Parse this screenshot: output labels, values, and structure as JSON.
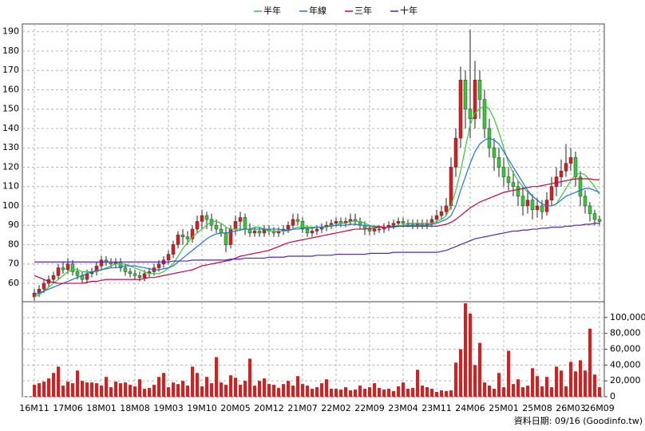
{
  "chart_data": {
    "type": "candlestick",
    "legend": "top",
    "grid": true,
    "up_color": "#e41a1a",
    "down_color": "#33cc33",
    "wick_color": "#222222",
    "source": "資料日期: 09/16 (Goodinfo.tw)",
    "categories": [
      "16M11",
      null,
      null,
      null,
      null,
      null,
      null,
      "17M06",
      null,
      null,
      null,
      null,
      null,
      null,
      "18M01",
      null,
      null,
      null,
      null,
      null,
      null,
      "18M08",
      null,
      null,
      null,
      null,
      null,
      null,
      "19M03",
      null,
      null,
      null,
      null,
      null,
      null,
      "19M10",
      null,
      null,
      null,
      null,
      null,
      null,
      "20M05",
      null,
      null,
      null,
      null,
      null,
      null,
      "20M12",
      null,
      null,
      null,
      null,
      null,
      null,
      "21M07",
      null,
      null,
      null,
      null,
      null,
      null,
      "22M02",
      null,
      null,
      null,
      null,
      null,
      null,
      "22M09",
      null,
      null,
      null,
      null,
      null,
      null,
      "23M04",
      null,
      null,
      null,
      null,
      null,
      null,
      "23M11",
      null,
      null,
      null,
      null,
      null,
      null,
      "24M06",
      null,
      null,
      null,
      null,
      null,
      null,
      "25M01",
      null,
      null,
      null,
      null,
      null,
      null,
      "25M08",
      null,
      null,
      null,
      null,
      null,
      null,
      "26M03",
      null,
      null,
      null,
      null,
      null,
      "26M09"
    ],
    "open": [
      53,
      55,
      57,
      60,
      62,
      64,
      68,
      67,
      70,
      66,
      64,
      62,
      65,
      66,
      69,
      72,
      71,
      70,
      71,
      68,
      66,
      65,
      64,
      63,
      65,
      66,
      68,
      70,
      72,
      75,
      80,
      85,
      84,
      83,
      88,
      92,
      95,
      93,
      90,
      88,
      86,
      80,
      88,
      92,
      94,
      88,
      86,
      87,
      86,
      88,
      87,
      86,
      87,
      88,
      90,
      93,
      92,
      88,
      86,
      87,
      88,
      89,
      90,
      91,
      92,
      91,
      92,
      93,
      92,
      90,
      88,
      87,
      88,
      88,
      89,
      90,
      91,
      92,
      91,
      91,
      90,
      91,
      90,
      91,
      93,
      95,
      97,
      100,
      120,
      135,
      165,
      150,
      145,
      165,
      155,
      140,
      130,
      125,
      120,
      115,
      112,
      110,
      105,
      100,
      103,
      98,
      100,
      97,
      103,
      110,
      115,
      118,
      122,
      125,
      115,
      105,
      100,
      96,
      93
    ],
    "high": [
      57,
      59,
      62,
      64,
      66,
      70,
      71,
      73,
      72,
      68,
      66,
      67,
      68,
      71,
      74,
      74,
      73,
      73,
      73,
      70,
      68,
      67,
      66,
      67,
      68,
      70,
      72,
      74,
      77,
      82,
      87,
      88,
      87,
      90,
      95,
      98,
      97,
      96,
      93,
      91,
      89,
      90,
      95,
      97,
      96,
      91,
      89,
      89,
      90,
      90,
      89,
      89,
      90,
      92,
      96,
      96,
      94,
      90,
      89,
      90,
      91,
      92,
      93,
      94,
      94,
      94,
      96,
      96,
      94,
      92,
      90,
      90,
      90,
      91,
      92,
      93,
      94,
      94,
      93,
      93,
      93,
      93,
      93,
      95,
      98,
      100,
      104,
      125,
      140,
      172,
      170,
      191,
      175,
      170,
      160,
      145,
      135,
      130,
      125,
      120,
      118,
      113,
      110,
      108,
      106,
      104,
      103,
      107,
      115,
      120,
      124,
      132,
      130,
      128,
      118,
      108,
      102,
      98,
      95
    ],
    "low": [
      51,
      53,
      55,
      58,
      60,
      62,
      65,
      65,
      64,
      62,
      60,
      60,
      63,
      64,
      67,
      69,
      68,
      68,
      66,
      64,
      63,
      62,
      61,
      61,
      63,
      64,
      66,
      68,
      70,
      73,
      78,
      80,
      80,
      81,
      86,
      88,
      88,
      87,
      86,
      84,
      76,
      78,
      85,
      88,
      85,
      84,
      84,
      84,
      84,
      85,
      84,
      84,
      85,
      86,
      88,
      90,
      86,
      84,
      84,
      85,
      86,
      87,
      88,
      89,
      89,
      89,
      90,
      90,
      88,
      85,
      85,
      85,
      86,
      86,
      87,
      88,
      89,
      89,
      89,
      88,
      88,
      88,
      88,
      89,
      91,
      93,
      95,
      98,
      115,
      130,
      140,
      135,
      140,
      145,
      135,
      125,
      118,
      115,
      110,
      108,
      105,
      100,
      95,
      96,
      93,
      94,
      93,
      95,
      100,
      105,
      110,
      115,
      118,
      110,
      100,
      96,
      92,
      90,
      90
    ],
    "close": [
      55,
      57,
      60,
      62,
      64,
      68,
      67,
      70,
      66,
      64,
      62,
      65,
      66,
      69,
      72,
      71,
      70,
      71,
      68,
      66,
      65,
      64,
      63,
      65,
      66,
      68,
      70,
      72,
      75,
      80,
      85,
      84,
      83,
      88,
      92,
      95,
      93,
      90,
      88,
      86,
      80,
      88,
      92,
      94,
      88,
      86,
      87,
      86,
      88,
      87,
      86,
      87,
      88,
      90,
      93,
      92,
      88,
      86,
      87,
      88,
      89,
      90,
      91,
      92,
      91,
      92,
      93,
      92,
      90,
      88,
      87,
      88,
      88,
      89,
      90,
      91,
      92,
      91,
      91,
      90,
      91,
      90,
      91,
      93,
      95,
      97,
      100,
      120,
      135,
      165,
      150,
      145,
      165,
      155,
      140,
      130,
      125,
      120,
      115,
      112,
      110,
      105,
      100,
      103,
      98,
      100,
      97,
      103,
      110,
      115,
      118,
      122,
      125,
      115,
      105,
      100,
      96,
      93,
      92
    ],
    "series": [
      {
        "name": "半年",
        "color": "#33cc33",
        "values": [
          53,
          54,
          56,
          58,
          60,
          62,
          64,
          66,
          67,
          67,
          66,
          66,
          66,
          66,
          67,
          68,
          69,
          70,
          70,
          70,
          69,
          68,
          67,
          66,
          65,
          65,
          65,
          66,
          68,
          70,
          74,
          78,
          81,
          84,
          86,
          88,
          90,
          92,
          92,
          91,
          89,
          88,
          88,
          88,
          88,
          88,
          89,
          89,
          88,
          87,
          87,
          87,
          87,
          87,
          88,
          89,
          89,
          89,
          89,
          89,
          89,
          89,
          90,
          90,
          91,
          91,
          92,
          92,
          92,
          91,
          90,
          89,
          89,
          89,
          89,
          89,
          90,
          90,
          91,
          91,
          91,
          91,
          91,
          91,
          92,
          93,
          95,
          100,
          108,
          118,
          130,
          142,
          148,
          150,
          152,
          150,
          145,
          138,
          130,
          122,
          117,
          113,
          110,
          107,
          105,
          103,
          101,
          100,
          100,
          101,
          105,
          109,
          113,
          116,
          117,
          116,
          113,
          110,
          106
        ]
      },
      {
        "name": "年線",
        "color": "#1f6fe0",
        "values": [
          54,
          55,
          56,
          57,
          58,
          59,
          60,
          61,
          62,
          63,
          64,
          65,
          66,
          66.5,
          67,
          67.5,
          68,
          68,
          68.5,
          69,
          69,
          69,
          68.5,
          68,
          67.5,
          67,
          67,
          67.5,
          68,
          69,
          71,
          73,
          75,
          77,
          79,
          81,
          83,
          84.5,
          85.5,
          86,
          86,
          86.5,
          87,
          87.5,
          88,
          88,
          88,
          88,
          88,
          88,
          88,
          88,
          87.5,
          87.5,
          88,
          88,
          88.5,
          88.5,
          88.5,
          89,
          89,
          89.5,
          89.5,
          90,
          90,
          90,
          90.5,
          90.5,
          90,
          90,
          89.5,
          89.5,
          89.5,
          89,
          89,
          89,
          89.5,
          89.5,
          90,
          90,
          90,
          90,
          90,
          90.5,
          91,
          92,
          93,
          95,
          100,
          108,
          115,
          122,
          128,
          132,
          134,
          135,
          134,
          132,
          128,
          124,
          120,
          116,
          112,
          108,
          105,
          103,
          101,
          100,
          100,
          101,
          103,
          105,
          106,
          107,
          108,
          109,
          109,
          108,
          107
        ]
      },
      {
        "name": "三年",
        "color": "#cc0044",
        "values": [
          64,
          63,
          62,
          61,
          60.5,
          60,
          60,
          60,
          60,
          60,
          60,
          60.5,
          61,
          61,
          61.5,
          62,
          62,
          62,
          62,
          62,
          62,
          62,
          62,
          62.5,
          63,
          63,
          63.5,
          64,
          64.5,
          65,
          65.5,
          66,
          66.5,
          67,
          68,
          69,
          69.5,
          70,
          70.5,
          71,
          71.5,
          72,
          73,
          74,
          74.5,
          75,
          75.5,
          76,
          76.5,
          77,
          78,
          79,
          80,
          81,
          81.5,
          82,
          82.5,
          83,
          83.5,
          84,
          84.5,
          85,
          85.5,
          86,
          86.5,
          87,
          87.5,
          88,
          88,
          88,
          88.5,
          88.5,
          89,
          89,
          89,
          89.5,
          89.5,
          89.5,
          89.5,
          89.5,
          89.5,
          89.5,
          89.5,
          89.5,
          89.5,
          90,
          90.5,
          91.5,
          93,
          95,
          97,
          99,
          100.5,
          102,
          103,
          104,
          105,
          106,
          107,
          107.5,
          108,
          108.5,
          109,
          109.5,
          110,
          110,
          110.5,
          111,
          111.5,
          112,
          112.5,
          113,
          113.5,
          114,
          114,
          114,
          114,
          113.5,
          113.5
        ]
      },
      {
        "name": "十年",
        "color": "#5522bb",
        "values": [
          71,
          71,
          71,
          71,
          71,
          71,
          71,
          71,
          71,
          71,
          71,
          71,
          71,
          71,
          71,
          71,
          71,
          71,
          71,
          71,
          71,
          71,
          71,
          71,
          71,
          71,
          71,
          71,
          71,
          71.5,
          71.5,
          71.5,
          71.5,
          72,
          72,
          72,
          72,
          72,
          72,
          72,
          72,
          72.5,
          72.5,
          72.5,
          73,
          73,
          73,
          73,
          73,
          73.5,
          73.5,
          73.5,
          73.5,
          74,
          74,
          74,
          74,
          74,
          74,
          74.5,
          74.5,
          74.5,
          74.5,
          75,
          75,
          75,
          75,
          75,
          75,
          75,
          75.5,
          75.5,
          75.5,
          75.5,
          75.5,
          76,
          76,
          76,
          76,
          76,
          76,
          76,
          76,
          76,
          76,
          76.5,
          77,
          78,
          79,
          80,
          81,
          82,
          83,
          83.5,
          84,
          84.5,
          85,
          85.5,
          86,
          86.5,
          87,
          87,
          87.5,
          87.5,
          88,
          88,
          88.5,
          88.5,
          89,
          89,
          89,
          89.5,
          89.5,
          90,
          90,
          90.5,
          90.5,
          91,
          91
        ]
      }
    ],
    "ylim": [
      50.5,
      194
    ],
    "yticks": [
      60,
      70,
      80,
      90,
      100,
      110,
      120,
      130,
      140,
      150,
      160,
      170,
      180,
      190
    ],
    "volume": {
      "type": "bar",
      "color": "#e41a1a",
      "values": [
        15000,
        17000,
        19000,
        23000,
        30000,
        38000,
        14000,
        19000,
        17000,
        33000,
        20000,
        18000,
        18000,
        17000,
        14000,
        25000,
        12000,
        19000,
        17000,
        18000,
        15000,
        13000,
        22000,
        10000,
        11000,
        15000,
        25000,
        30000,
        12000,
        18000,
        16000,
        20000,
        14000,
        38000,
        30000,
        13000,
        25000,
        17000,
        50000,
        18000,
        15000,
        27000,
        24000,
        15000,
        20000,
        48000,
        14000,
        20000,
        23000,
        16000,
        15000,
        11000,
        16000,
        20000,
        14000,
        26000,
        16000,
        14000,
        10000,
        12000,
        17000,
        22000,
        10000,
        10000,
        9000,
        12000,
        8000,
        9000,
        14000,
        10000,
        12000,
        17000,
        11000,
        9000,
        10000,
        7000,
        13000,
        18000,
        10000,
        11000,
        34000,
        14000,
        12000,
        10000,
        6000,
        8000,
        7000,
        8000,
        43000,
        60000,
        118000,
        105000,
        40000,
        68000,
        18000,
        14000,
        10000,
        30000,
        12000,
        58000,
        16000,
        22000,
        12000,
        14000,
        36000,
        26000,
        13000,
        25000,
        12000,
        38000,
        33000,
        13000,
        44000,
        32000,
        46000,
        33000,
        86000,
        28000,
        12000
      ],
      "ylim": [
        0,
        120000
      ],
      "yticks": [
        0,
        {
          "value": 20000,
          "label": "20,000"
        },
        {
          "value": 40000,
          "label": "40,000"
        },
        {
          "value": 60000,
          "label": "60,000"
        },
        {
          "value": 80000,
          "label": "80,000"
        },
        {
          "value": 100000,
          "label": "100,000"
        }
      ]
    }
  }
}
